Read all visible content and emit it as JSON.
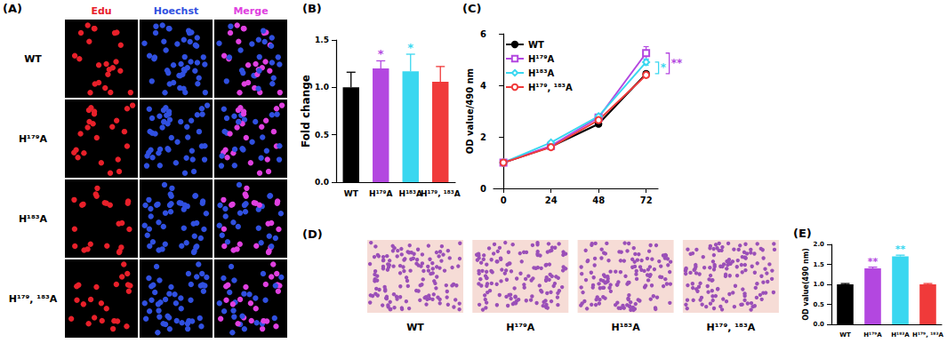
{
  "image_panels": [
    {
      "title": "(A)",
      "columns": [
        {
          "label": "Edu",
          "color": "#e8202a"
        },
        {
          "label": "Hoechst",
          "color": "#3050e0"
        },
        {
          "label": "Merge",
          "color": "#e040e0"
        }
      ],
      "rows": [
        "WT",
        "H¹⁷⁹A",
        "H¹⁸³A",
        "H¹⁷⁹, ¹⁸³A"
      ]
    },
    {
      "title": "(D)",
      "labels": [
        "WT",
        "H¹⁷⁹A",
        "H¹⁸³A",
        "H¹⁷⁹, ¹⁸³A"
      ]
    }
  ],
  "chart_data": [
    {
      "type": "bar",
      "title": "(B)",
      "y_label": "Fold change",
      "categories": [
        "WT",
        "H¹⁷⁹A",
        "H¹⁸³A",
        "H¹⁷⁹, ¹⁸³A"
      ],
      "values": [
        1.0,
        1.2,
        1.17,
        1.06
      ],
      "errors": [
        0.16,
        0.08,
        0.18,
        0.16
      ],
      "colors": [
        "#000000",
        "#B347E0",
        "#3AD7F0",
        "#F03A3A"
      ],
      "ylim": [
        0,
        1.5
      ],
      "yticks": [
        {
          "value": 0,
          "label": "0.0"
        },
        {
          "value": 0.5,
          "label": "0.5"
        },
        {
          "value": 1,
          "label": "1.0"
        },
        {
          "value": 1.5,
          "label": "1.5"
        }
      ],
      "annotations": [
        {
          "category": "H¹⁷⁹A",
          "text": "*"
        },
        {
          "category": "H¹⁸³A",
          "text": "*"
        }
      ],
      "grid": false
    },
    {
      "type": "line",
      "title": "(C)",
      "y_label": "OD value/490 nm",
      "x": [
        0,
        24,
        48,
        72
      ],
      "xlim": [
        -5,
        78
      ],
      "xticks": [
        0,
        24,
        48,
        72
      ],
      "ylim": [
        0,
        6
      ],
      "yticks": [
        0,
        2,
        4,
        6
      ],
      "legend": "upper left",
      "series": [
        {
          "name": "WT",
          "color": "#000000",
          "marker": "circle",
          "values": [
            1.0,
            1.62,
            2.5,
            4.45
          ],
          "errors": [
            0.03,
            0.05,
            0.06,
            0.08
          ]
        },
        {
          "name": "H¹⁷⁹A",
          "color": "#B347E0",
          "marker": "square-open",
          "values": [
            1.0,
            1.65,
            2.75,
            5.25
          ],
          "errors": [
            0.03,
            0.05,
            0.07,
            0.25
          ]
        },
        {
          "name": "H¹⁸³A",
          "color": "#3AD7F0",
          "marker": "diamond-open",
          "values": [
            1.0,
            1.78,
            2.8,
            4.9
          ],
          "errors": [
            0.03,
            0.05,
            0.07,
            0.12
          ]
        },
        {
          "name": "H¹⁷⁹, ¹⁸³A",
          "color": "#F03A3A",
          "marker": "circle-open",
          "values": [
            1.0,
            1.6,
            2.65,
            4.4
          ],
          "errors": [
            0.03,
            0.05,
            0.06,
            0.08
          ]
        }
      ],
      "brackets": [
        {
          "series": [
            "WT",
            "H¹⁸³A"
          ],
          "text": "*",
          "color": "#3AD7F0"
        },
        {
          "series": [
            "WT",
            "H¹⁷⁹A"
          ],
          "text": "**",
          "color": "#B347E0"
        }
      ],
      "grid": false
    },
    {
      "type": "bar",
      "title": "(E)",
      "y_label": "OD value(490 nm)",
      "categories": [
        "WT",
        "H¹⁷⁹A",
        "H¹⁸³A",
        "H¹⁷⁹, ¹⁸³A"
      ],
      "values": [
        1.0,
        1.4,
        1.7,
        1.0
      ],
      "errors": [
        0.02,
        0.03,
        0.03,
        0.02
      ],
      "colors": [
        "#000000",
        "#B347E0",
        "#3AD7F0",
        "#F03A3A"
      ],
      "ylim": [
        0,
        2
      ],
      "yticks": [
        {
          "value": 0,
          "label": "0.0"
        },
        {
          "value": 0.5,
          "label": "0.5"
        },
        {
          "value": 1,
          "label": "1.0"
        },
        {
          "value": 1.5,
          "label": "1.5"
        },
        {
          "value": 2,
          "label": "2.0"
        }
      ],
      "annotations": [
        {
          "category": "H¹⁷⁹A",
          "text": "**"
        },
        {
          "category": "H¹⁸³A",
          "text": "**"
        }
      ],
      "grid": false
    }
  ]
}
